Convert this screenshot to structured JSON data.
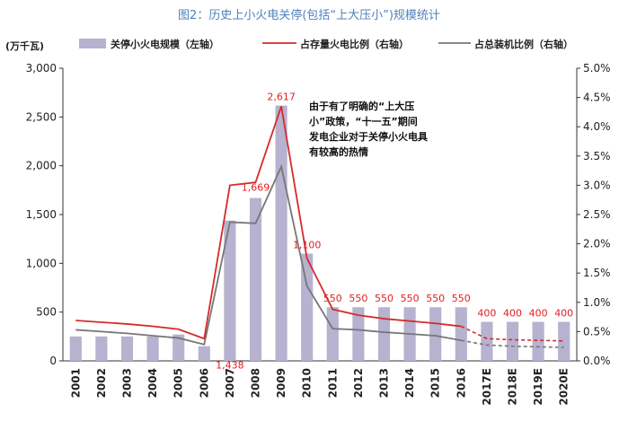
{
  "page": {
    "title": "图2：历史上小火电关停(包括“上大压小”)规模统计"
  },
  "chart_data": {
    "type": "bar",
    "categories": [
      "2001",
      "2002",
      "2003",
      "2004",
      "2005",
      "2006",
      "2007",
      "2008",
      "2009",
      "2010",
      "2011",
      "2012",
      "2013",
      "2014",
      "2015",
      "2016",
      "2017E",
      "2018E",
      "2019E",
      "2020E"
    ],
    "y_left": {
      "unit": "(万千瓦)",
      "lim": [
        0,
        3000
      ],
      "ticks": [
        "0",
        "500",
        "1,000",
        "1,500",
        "2,000",
        "2,500",
        "3,000"
      ],
      "tick_values": [
        0,
        500,
        1000,
        1500,
        2000,
        2500,
        3000
      ]
    },
    "y_right": {
      "lim": [
        0,
        0.05
      ],
      "ticks": [
        "0.0%",
        "0.5%",
        "1.0%",
        "1.5%",
        "2.0%",
        "2.5%",
        "3.0%",
        "3.5%",
        "4.0%",
        "4.5%",
        "5.0%"
      ],
      "tick_values": [
        0,
        0.005,
        0.01,
        0.015,
        0.02,
        0.025,
        0.03,
        0.035,
        0.04,
        0.045,
        0.05
      ]
    },
    "series": [
      {
        "name": "关停小火电规模（左轴）",
        "kind": "bar",
        "axis": "left",
        "color": "#b7b2cf",
        "values": [
          250,
          250,
          250,
          250,
          270,
          150,
          1438,
          1669,
          2617,
          1100,
          550,
          550,
          550,
          550,
          550,
          550,
          400,
          400,
          400,
          400
        ],
        "labels": [
          "",
          "",
          "",
          "",
          "",
          "",
          "1,438",
          "1,669",
          "2,617",
          "1,100",
          "550",
          "550",
          "550",
          "550",
          "550",
          "550",
          "400",
          "400",
          "400",
          "400"
        ]
      },
      {
        "name": "占存量火电比例（右轴）",
        "kind": "line",
        "axis": "right",
        "color": "#d62a2a",
        "values": [
          0.0069,
          0.0066,
          0.0063,
          0.0059,
          0.0054,
          0.0038,
          0.03,
          0.0305,
          0.0435,
          0.0175,
          0.0088,
          0.0078,
          0.0072,
          0.0068,
          0.0064,
          0.0059,
          0.0038,
          0.0036,
          0.0035,
          0.0034
        ],
        "dashed_from_index": 15
      },
      {
        "name": "占总装机比例（右轴）",
        "kind": "line",
        "axis": "right",
        "color": "#777777",
        "values": [
          0.0053,
          0.005,
          0.0047,
          0.0043,
          0.0039,
          0.0028,
          0.0237,
          0.0235,
          0.0332,
          0.0128,
          0.0055,
          0.0053,
          0.0049,
          0.0046,
          0.0043,
          0.0035,
          0.0027,
          0.0025,
          0.0024,
          0.0023
        ],
        "dashed_from_index": 15
      }
    ],
    "annotation": [
      "由于有了明确的“上大压",
      "小”政策，“十一五”期间",
      "发电企业对于关停小火电具",
      "有较高的热情"
    ]
  }
}
